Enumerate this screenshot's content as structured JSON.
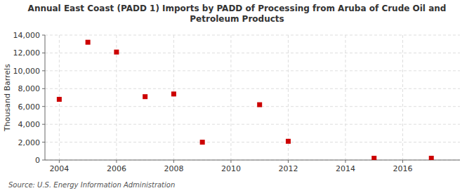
{
  "chart_data": {
    "type": "scatter",
    "title": "Annual East Coast (PADD 1) Imports by PADD of Processing from Aruba of Crude Oil and\nPetroleum Products",
    "y_label": "Thousand Barrels",
    "source": "Source: U.S. Energy Information Administration",
    "x": [
      2004,
      2005,
      2006,
      2007,
      2008,
      2009,
      2011,
      2012,
      2015,
      2017
    ],
    "values": [
      6800,
      13200,
      12100,
      7100,
      7400,
      2000,
      6200,
      2100,
      200,
      200
    ],
    "color": "#cc0000",
    "marker": "square",
    "xlim": [
      2003.5,
      2018.0
    ],
    "ylim": [
      0,
      14000
    ],
    "xticks": [
      2004,
      2006,
      2008,
      2010,
      2012,
      2014,
      2016
    ],
    "yticks": [
      0,
      {
        "value": 2000,
        "label": "2,000"
      },
      {
        "value": 4000,
        "label": "4,000"
      },
      {
        "value": 6000,
        "label": "6,000"
      },
      {
        "value": 8000,
        "label": "8,000"
      },
      {
        "value": 10000,
        "label": "10,000"
      },
      {
        "value": 12000,
        "label": "12,000"
      },
      {
        "value": 14000,
        "label": "14,000"
      }
    ],
    "grid": true
  }
}
